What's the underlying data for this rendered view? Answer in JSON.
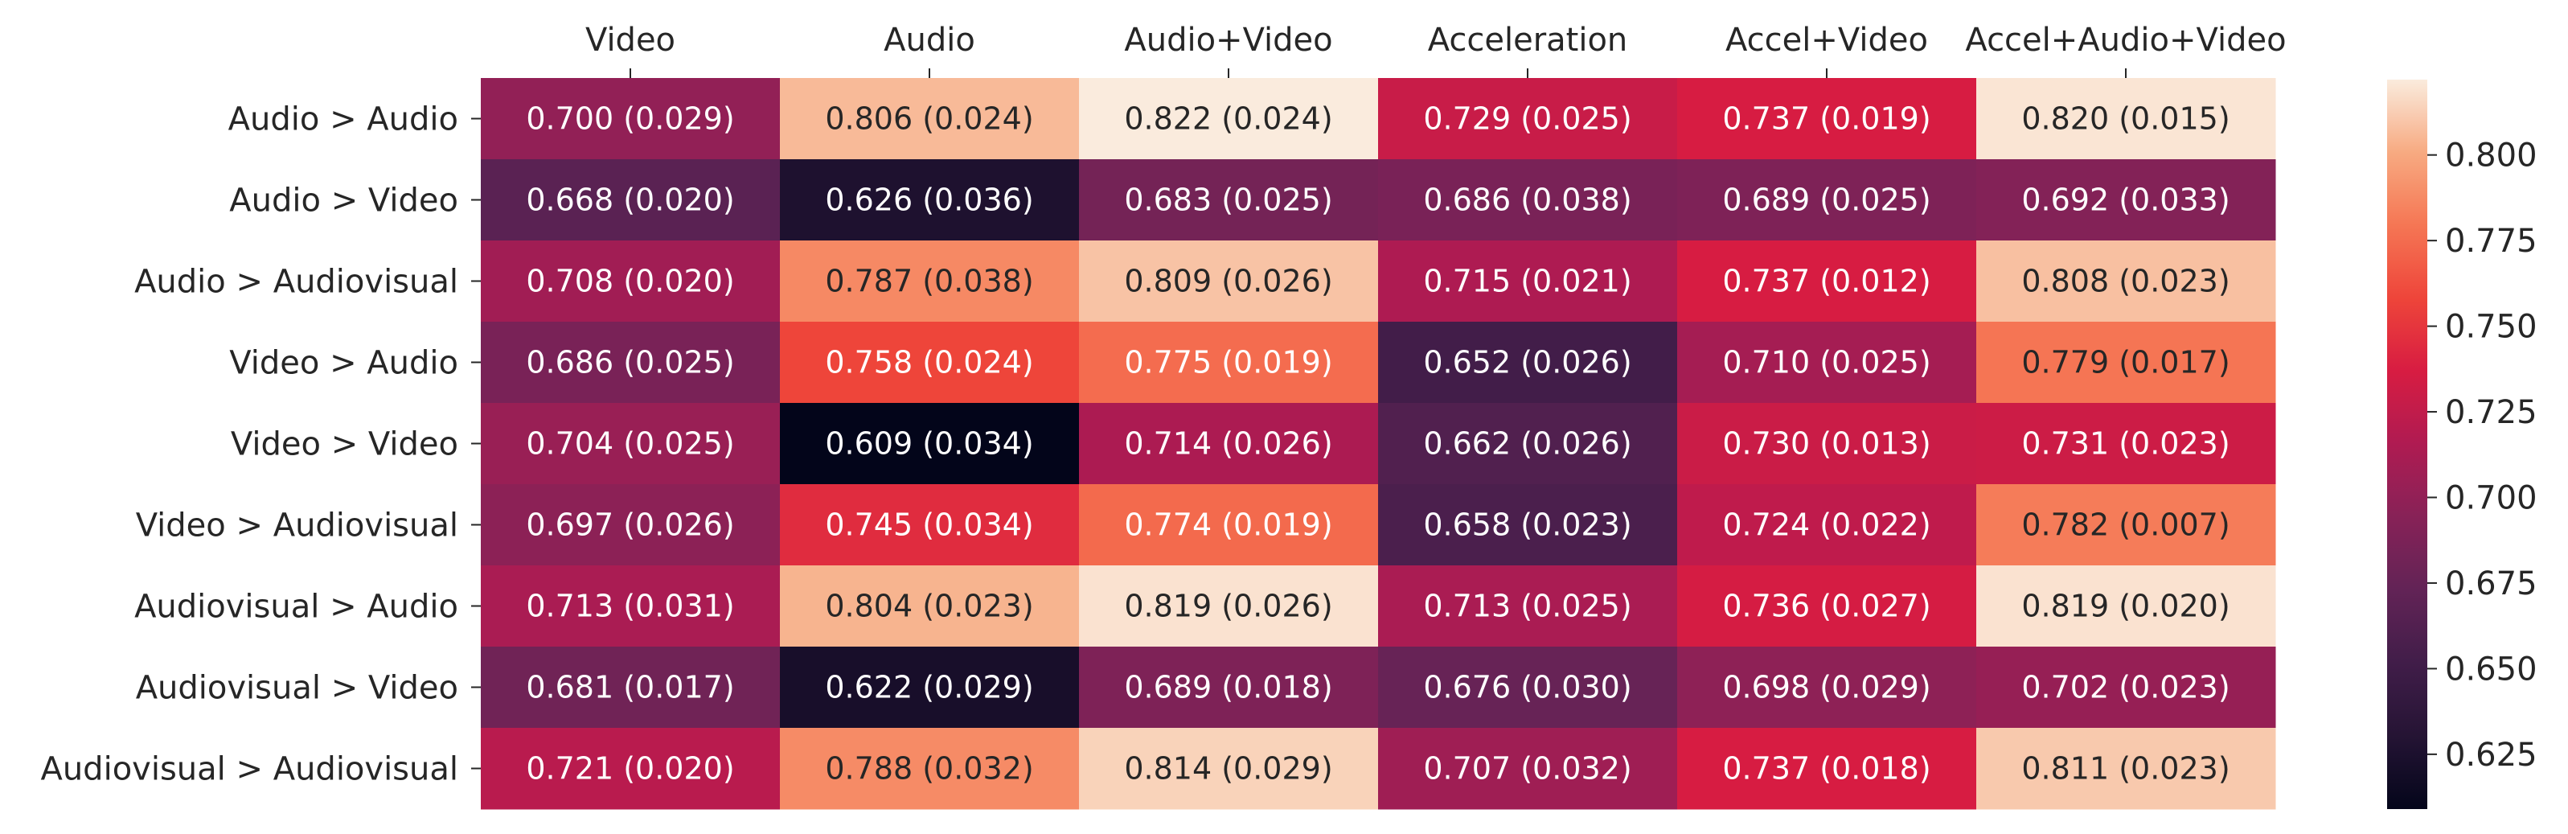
{
  "chart_data": {
    "type": "heatmap",
    "x_categories": [
      "Video",
      "Audio",
      "Audio+Video",
      "Acceleration",
      "Accel+Video",
      "Accel+Audio+Video"
    ],
    "y_categories": [
      "Audio > Audio",
      "Audio > Video",
      "Audio > Audiovisual",
      "Video > Audio",
      "Video > Video",
      "Video > Audiovisual",
      "Audiovisual > Audio",
      "Audiovisual > Video",
      "Audiovisual > Audiovisual"
    ],
    "values": [
      [
        0.7,
        0.806,
        0.822,
        0.729,
        0.737,
        0.82
      ],
      [
        0.668,
        0.626,
        0.683,
        0.686,
        0.689,
        0.692
      ],
      [
        0.708,
        0.787,
        0.809,
        0.715,
        0.737,
        0.808
      ],
      [
        0.686,
        0.758,
        0.775,
        0.652,
        0.71,
        0.779
      ],
      [
        0.704,
        0.609,
        0.714,
        0.662,
        0.73,
        0.731
      ],
      [
        0.697,
        0.745,
        0.774,
        0.658,
        0.724,
        0.782
      ],
      [
        0.713,
        0.804,
        0.819,
        0.713,
        0.736,
        0.819
      ],
      [
        0.681,
        0.622,
        0.689,
        0.676,
        0.698,
        0.702
      ],
      [
        0.721,
        0.788,
        0.814,
        0.707,
        0.737,
        0.811
      ]
    ],
    "cell_labels": [
      [
        "0.700 (0.029)",
        "0.806 (0.024)",
        "0.822 (0.024)",
        "0.729 (0.025)",
        "0.737 (0.019)",
        "0.820 (0.015)"
      ],
      [
        "0.668 (0.020)",
        "0.626 (0.036)",
        "0.683 (0.025)",
        "0.686 (0.038)",
        "0.689 (0.025)",
        "0.692 (0.033)"
      ],
      [
        "0.708 (0.020)",
        "0.787 (0.038)",
        "0.809 (0.026)",
        "0.715 (0.021)",
        "0.737 (0.012)",
        "0.808 (0.023)"
      ],
      [
        "0.686 (0.025)",
        "0.758 (0.024)",
        "0.775 (0.019)",
        "0.652 (0.026)",
        "0.710 (0.025)",
        "0.779 (0.017)"
      ],
      [
        "0.704 (0.025)",
        "0.609 (0.034)",
        "0.714 (0.026)",
        "0.662 (0.026)",
        "0.730 (0.013)",
        "0.731 (0.023)"
      ],
      [
        "0.697 (0.026)",
        "0.745 (0.034)",
        "0.774 (0.019)",
        "0.658 (0.023)",
        "0.724 (0.022)",
        "0.782 (0.007)"
      ],
      [
        "0.713 (0.031)",
        "0.804 (0.023)",
        "0.819 (0.026)",
        "0.713 (0.025)",
        "0.736 (0.027)",
        "0.819 (0.020)"
      ],
      [
        "0.681 (0.017)",
        "0.622 (0.029)",
        "0.689 (0.018)",
        "0.676 (0.030)",
        "0.698 (0.029)",
        "0.702 (0.023)"
      ],
      [
        "0.721 (0.020)",
        "0.788 (0.032)",
        "0.814 (0.029)",
        "0.707 (0.032)",
        "0.737 (0.018)",
        "0.811 (0.023)"
      ]
    ],
    "x_axis_position": "top",
    "colormap": "rocket",
    "colorbar": {
      "vmin": 0.609,
      "vmax": 0.822,
      "ticks": [
        0.625,
        0.65,
        0.675,
        0.7,
        0.725,
        0.75,
        0.775,
        0.8
      ],
      "tick_labels": [
        "0.625",
        "0.650",
        "0.675",
        "0.700",
        "0.725",
        "0.750",
        "0.775",
        "0.800"
      ],
      "position": "right"
    },
    "grid": false,
    "title": "",
    "xlabel": "",
    "ylabel": ""
  }
}
